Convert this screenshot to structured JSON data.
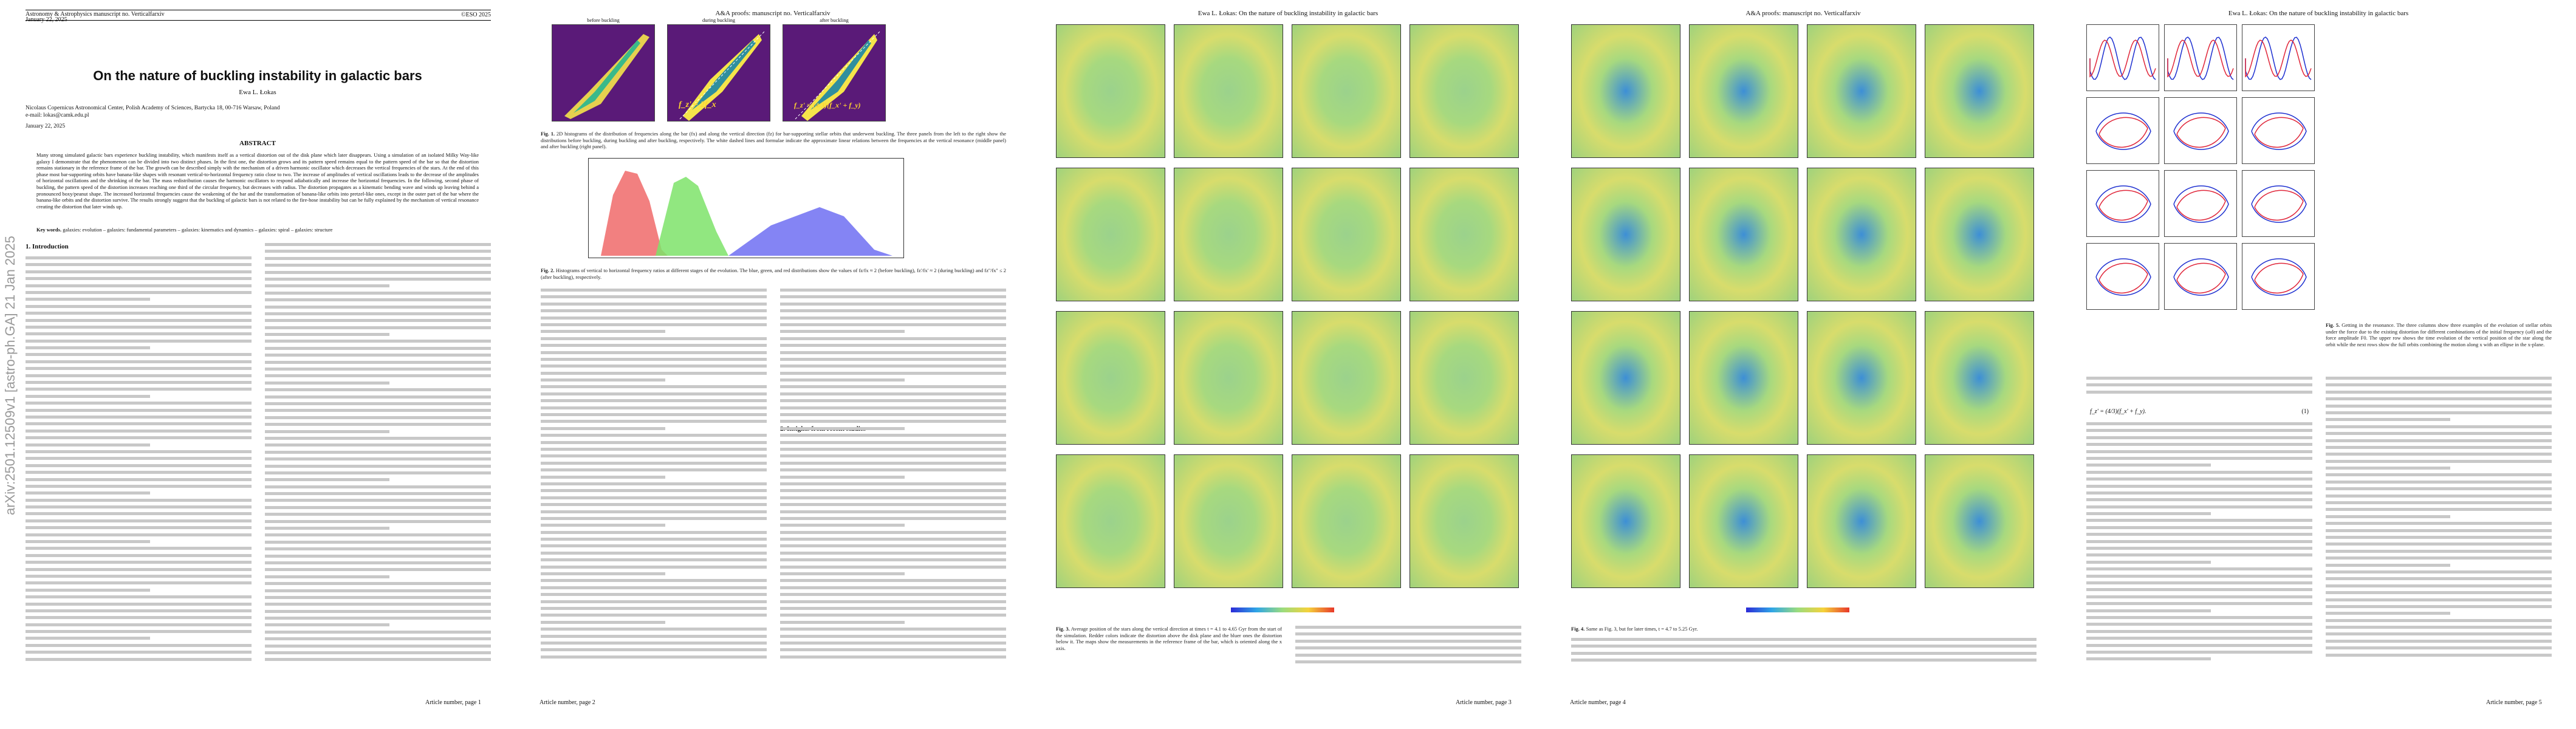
{
  "page1": {
    "journal": "Astronomy & Astrophysics manuscript no. Verticalfarxiv",
    "date_top": "January 22, 2025",
    "copyright": "©ESO 2025",
    "title": "On the nature of buckling instability in galactic bars",
    "author": "Ewa L. Łokas",
    "affiliation_1": "Nicolaus Copernicus Astronomical Center, Polish Academy of Sciences, Bartycka 18, 00-716 Warsaw, Poland",
    "affiliation_2": "e-mail: lokas@camk.edu.pl",
    "received": "January 22, 2025",
    "abstract_title": "ABSTRACT",
    "abstract": "Many strong simulated galactic bars experience buckling instability, which manifests itself as a vertical distortion out of the disk plane which later disappears. Using a simulation of an isolated Milky Way-like galaxy I demonstrate that the phenomenon can be divided into two distinct phases. In the first one, the distortion grows and its pattern speed remains equal to the pattern speed of the bar so that the distortion remains stationary in the reference frame of the bar. The growth can be described simply with the mechanism of a driven harmonic oscillator which decreases the vertical frequencies of the stars. At the end of this phase most bar-supporting orbits have banana-like shapes with resonant vertical-to-horizontal frequency ratio close to two. The increase of amplitudes of vertical oscillations leads to the decrease of the amplitudes of horizontal oscillations and the shrinking of the bar. The mass redistribution causes the harmonic oscillators to respond adiabatically and increase the horizontal frequencies. In the following, second phase of buckling, the pattern speed of the distortion increases reaching one third of the circular frequency, but decreases with radius. The distortion propagates as a kinematic bending wave and winds up leaving behind a pronounced boxy/peanut shape. The increased horizontal frequencies cause the weakening of the bar and the transformation of banana-like orbits into pretzel-like ones, except in the outer part of the bar where the banana-like orbits and the distortion survive. The results strongly suggest that the buckling of galactic bars is not related to the fire-hose instability but can be fully explained by the mechanism of vertical resonance creating the distortion that later winds up.",
    "keywords_label": "Key words.",
    "keywords": "galaxies: evolution – galaxies: fundamental parameters – galaxies: kinematics and dynamics – galaxies: spiral – galaxies: structure",
    "arxiv_stamp": "arXiv:2501.12509v1  [astro-ph.GA]  21 Jan 2025",
    "section1": "1. Introduction",
    "footer": "Article number, page 1"
  },
  "page2": {
    "running_head": "A&A proofs: manuscript no. Verticalfarxiv",
    "panels": [
      {
        "title": "before buckling",
        "eq": ""
      },
      {
        "title": "during buckling",
        "eq": "f_z' = 2f_x"
      },
      {
        "title": "after buckling",
        "eq": "f_z' = (4/3)(f_x' + f_y)"
      }
    ],
    "fig1_caption_label": "Fig. 1.",
    "fig1_caption": "2D histograms of the distribution of frequencies along the bar (fx) and along the vertical direction (fz) for bar-supporting stellar orbits that underwent buckling. The three panels from the left to the right show the distributions before buckling, during buckling and after buckling, respectively. The white dashed lines and formulae indicate the approximate linear relations between the frequencies at the vertical resonance (middle panel) and after buckling (right panel).",
    "fig2_caption_label": "Fig. 2.",
    "fig2_caption": "Histograms of vertical to horizontal frequency ratios at different stages of the evolution. The blue, green, and red distributions show the values of fz/fx ≈ 2 (before buckling), fz'/fx' ≈ 2 (during buckling) and fz''/fx'' ≤ 2 (after buckling), respectively.",
    "footer": "Article number, page 2",
    "section2": "2. Insights from recent studies"
  },
  "page3": {
    "running_head": "Ewa L. Łokas: On the nature of buckling instability in galactic bars",
    "fig3_caption_label": "Fig. 3.",
    "fig3_caption": "Average position of the stars along the vertical direction at times t = 4.1 to 4.65 Gyr from the start of the simulation. Redder colors indicate the distortion above the disk plane and the bluer ones the distortion below it. The maps show the measurements in the reference frame of the bar, which is oriented along the x axis.",
    "footer": "Article number, page 3"
  },
  "page4": {
    "running_head": "A&A proofs: manuscript no. Verticalfarxiv",
    "fig4_caption_label": "Fig. 4.",
    "fig4_caption": "Same as Fig. 3, but for later times, t = 4.7 to 5.25 Gyr.",
    "footer": "Article number, page 4"
  },
  "page5": {
    "running_head": "Ewa L. Łokas: On the nature of buckling instability in galactic bars",
    "fig5_caption_label": "Fig. 5.",
    "fig5_caption": "Getting in the resonance. The three columns show three examples of the evolution of stellar orbits under the force due to the existing distortion for different combinations of the initial frequency (ω0) and the force amplitude F0. The upper row shows the time evolution of the vertical position of the star along the orbit while the next rows show the full orbits combining the motion along x with an ellipse in the x-plane.",
    "equation": "f_z' = (4/3)(f_x' + f_y).",
    "eq_number": "(1)",
    "footer": "Article number, page 5"
  }
}
